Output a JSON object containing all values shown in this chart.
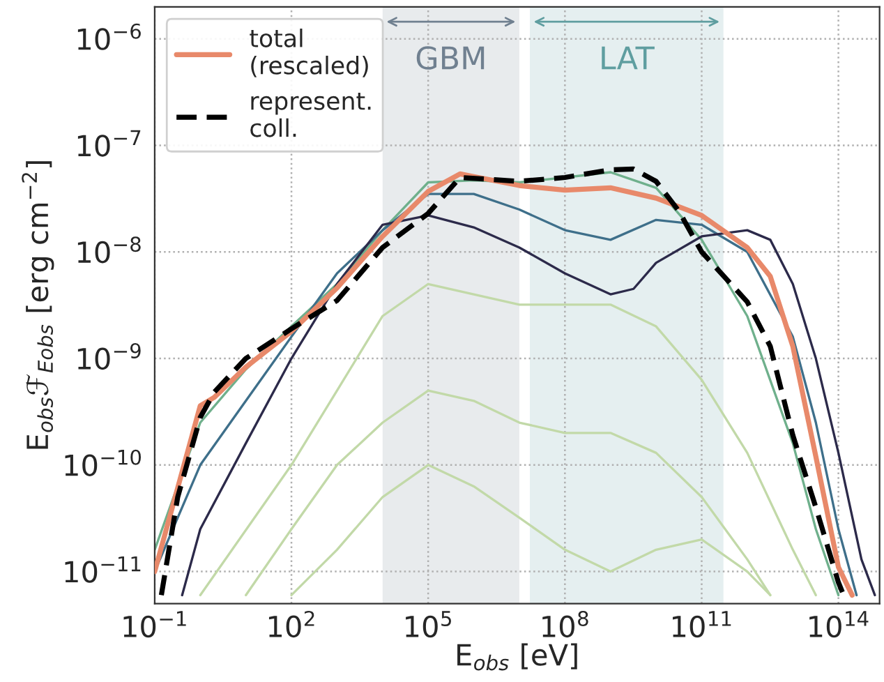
{
  "chart_data": {
    "type": "line",
    "xlabel": "E$_{obs}$ [eV]",
    "ylabel": "E$_{obs}$ℱ$_{Eobs}$ [erg cm$^{−2}$]",
    "log": "xy",
    "grid": true,
    "legend": "top left",
    "xlim": [
      0.1,
      800000000000000.0
    ],
    "ylim": [
      5e-12,
      2e-06
    ],
    "xticks": [
      {
        "value": 0.1,
        "label": "10$^{−1}$"
      },
      {
        "value": 100,
        "label": "10$^{2}$"
      },
      {
        "value": 100000.0,
        "label": "10$^{5}$"
      },
      {
        "value": 100000000.0,
        "label": "10$^{8}$"
      },
      {
        "value": 100000000000.0,
        "label": "10$^{11}$"
      },
      {
        "value": 100000000000000.0,
        "label": "10$^{14}$"
      }
    ],
    "yticks": [
      {
        "value": 1e-11,
        "label": "10$^{−11}$"
      },
      {
        "value": 1e-10,
        "label": "10$^{−10}$"
      },
      {
        "value": 1e-09,
        "label": "10$^{−9}$"
      },
      {
        "value": 1e-08,
        "label": "10$^{−8}$"
      },
      {
        "value": 1e-07,
        "label": "10$^{−7}$"
      },
      {
        "value": 1e-06,
        "label": "10$^{−6}$"
      }
    ],
    "bands": [
      {
        "axis": "x",
        "from": 10000.0,
        "to": 10000000.0,
        "label": "GBM",
        "color": "#708090"
      },
      {
        "axis": "x",
        "from": 17000000.0,
        "to": 300000000000.0,
        "label": "LAT",
        "color": "#5f9ea0"
      }
    ],
    "series": [
      {
        "color": "#c2d9a8",
        "x": [
          100,
          1000.0,
          10000.0,
          100000.0,
          1000000.0,
          10000000.0,
          100000000.0,
          1000000000.0,
          10000000000.0,
          100000000000.0,
          1000000000000.0,
          3200000000000.0
        ],
        "values": [
          6e-12,
          1.6e-11,
          5e-11,
          1e-10,
          6.3e-11,
          3.2e-11,
          1.6e-11,
          1e-11,
          1.6e-11,
          2e-11,
          1e-11,
          6e-12
        ]
      },
      {
        "color": "#c2d9a8",
        "x": [
          10,
          100,
          1000.0,
          10000.0,
          100000.0,
          1000000.0,
          10000000.0,
          100000000.0,
          1000000000.0,
          10000000000.0,
          100000000000.0,
          1000000000000.0,
          3200000000000.0
        ],
        "values": [
          6e-12,
          2.5e-11,
          1e-10,
          2.5e-10,
          5e-10,
          4e-10,
          2.5e-10,
          2e-10,
          2e-10,
          1.3e-10,
          5e-11,
          1.3e-11,
          6e-12
        ]
      },
      {
        "color": "#c2d9a8",
        "x": [
          1,
          100,
          1000.0,
          10000.0,
          100000.0,
          1000000.0,
          10000000.0,
          100000000.0,
          1000000000.0,
          10000000000.0,
          100000000000.0,
          1000000000000.0,
          10000000000000.0,
          32000000000000.0
        ],
        "values": [
          6e-12,
          1e-10,
          5e-10,
          2.5e-09,
          5e-09,
          4e-09,
          3.2e-09,
          3.2e-09,
          3.2e-09,
          2e-09,
          6.3e-10,
          1.3e-10,
          1.6e-11,
          6e-12
        ]
      },
      {
        "color": "#6fb08c",
        "x": [
          0.1,
          1,
          10,
          100,
          1000.0,
          10000.0,
          100000.0,
          1000000.0,
          10000000.0,
          100000000.0,
          1000000000.0,
          10000000000.0,
          100000000000.0,
          1000000000000.0,
          10000000000000.0,
          32000000000000.0,
          100000000000000.0
        ],
        "values": [
          1.6e-11,
          2.5e-10,
          7.9e-10,
          2e-09,
          5e-09,
          1.6e-08,
          4.5e-08,
          4.7e-08,
          4.5e-08,
          5e-08,
          5.6e-08,
          4e-08,
          1.3e-08,
          2.5e-09,
          1.6e-10,
          2.5e-11,
          6e-12
        ]
      },
      {
        "color": "#3e6f8a",
        "x": [
          0.1,
          1,
          10,
          100,
          1000.0,
          10000.0,
          100000.0,
          1000000.0,
          10000000.0,
          100000000.0,
          1000000000.0,
          10000000000.0,
          100000000000.0,
          1000000000000.0,
          10000000000000.0,
          32000000000000.0,
          100000000000000.0,
          250000000000000.0
        ],
        "values": [
          1e-11,
          1e-10,
          4e-10,
          1.6e-09,
          6.3e-09,
          1.6e-08,
          3.5e-08,
          3.5e-08,
          2.5e-08,
          1.6e-08,
          1.3e-08,
          2e-08,
          1.8e-08,
          1e-08,
          1.6e-09,
          2.5e-10,
          2.5e-11,
          6e-12
        ]
      },
      {
        "color": "#2c2a4a",
        "x": [
          0.4,
          1,
          10,
          100,
          1000.0,
          10000.0,
          100000.0,
          1000000.0,
          10000000.0,
          100000000.0,
          1000000000.0,
          3200000000.0,
          10000000000.0,
          100000000000.0,
          1000000000000.0,
          3200000000000.0,
          10000000000000.0,
          32000000000000.0,
          100000000000000.0,
          320000000000000.0,
          630000000000000.0
        ],
        "values": [
          6e-12,
          2.5e-11,
          1.6e-10,
          1e-09,
          5e-09,
          1.8e-08,
          2.2e-08,
          1.7e-08,
          1.1e-08,
          6.3e-09,
          4e-09,
          4.5e-09,
          7.9e-09,
          1.4e-08,
          1.6e-08,
          1.3e-08,
          5e-09,
          1e-09,
          1.3e-10,
          1.3e-11,
          6e-12
        ]
      },
      {
        "name": "total\n(rescaled)",
        "color": "#e8896a",
        "x": [
          0.1,
          1,
          2,
          10,
          100,
          1000.0,
          10000.0,
          100000.0,
          500000.0,
          1000000.0,
          10000000.0,
          100000000.0,
          1000000000.0,
          10000000000.0,
          100000000000.0,
          1000000000000.0,
          3200000000000.0,
          10000000000000.0,
          32000000000000.0,
          100000000000000.0,
          200000000000000.0
        ],
        "values": [
          1e-11,
          3.6e-10,
          4.3e-10,
          8.3e-10,
          1.8e-09,
          4.6e-09,
          1.4e-08,
          3.7e-08,
          5.4e-08,
          5.1e-08,
          4.2e-08,
          3.8e-08,
          4e-08,
          3.2e-08,
          2.2e-08,
          1.1e-08,
          5.9e-09,
          1.3e-09,
          1.2e-10,
          1.1e-11,
          6e-12
        ]
      },
      {
        "name": "represent.\ncoll.",
        "color": "#000000",
        "line_style": "dashed",
        "x": [
          0.14,
          0.32,
          1,
          2,
          10,
          100,
          1000.0,
          10000.0,
          100000.0,
          500000.0,
          10000000.0,
          100000000.0,
          1000000000.0,
          3200000000.0,
          10000000000.0,
          32000000000.0,
          100000000000.0,
          1000000000000.0,
          3200000000000.0,
          10000000000000.0,
          32000000000000.0,
          100000000000000.0,
          130000000000000.0
        ],
        "values": [
          6e-12,
          5e-11,
          2.8e-10,
          4.8e-10,
          1e-09,
          1.9e-09,
          3.5e-09,
          1.1e-08,
          2.3e-08,
          5e-08,
          4.6e-08,
          5e-08,
          5.9e-08,
          6e-08,
          4.6e-08,
          2.4e-08,
          1e-08,
          3.4e-09,
          1.3e-09,
          1.9e-10,
          4e-11,
          7.9e-12,
          6e-12
        ]
      }
    ]
  }
}
